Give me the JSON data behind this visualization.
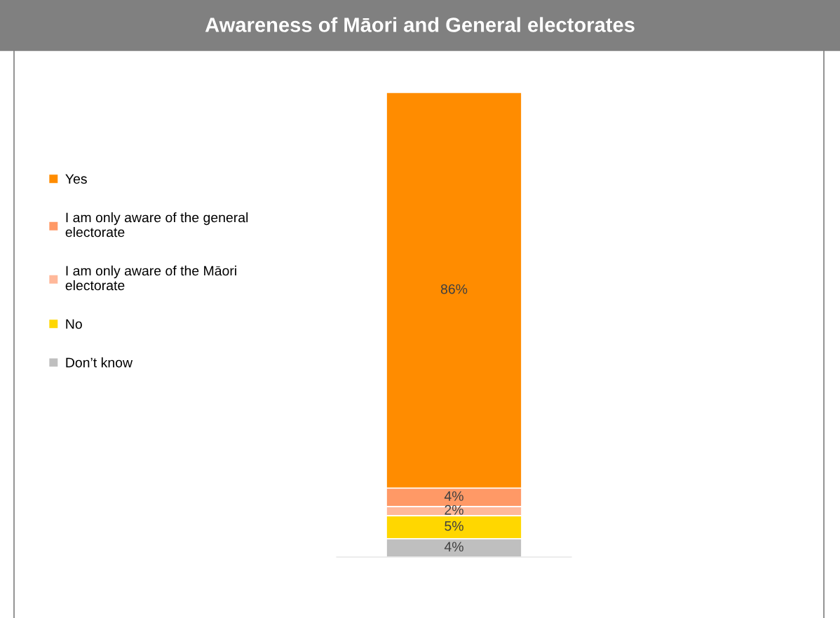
{
  "chart_data": {
    "type": "bar",
    "stacked": true,
    "title": "Awareness of Māori and General electorates",
    "categories": [
      null
    ],
    "series": [
      {
        "name": "Don’t know",
        "color": "#bfbfbf",
        "values": [
          4
        ],
        "value_labels": [
          "4%"
        ]
      },
      {
        "name": "No",
        "color": "#ffd700",
        "values": [
          5
        ],
        "value_labels": [
          "5%"
        ]
      },
      {
        "name": "I am only aware of the Māori electorate",
        "color": "#ffb89a",
        "values": [
          2
        ],
        "value_labels": [
          "2%"
        ]
      },
      {
        "name": "I am only aware of the general electorate",
        "color": "#ff9966",
        "values": [
          4
        ],
        "value_labels": [
          "4%"
        ]
      },
      {
        "name": "Yes",
        "color": "#ff8c00",
        "values": [
          86
        ],
        "value_labels": [
          "86%"
        ]
      }
    ],
    "legend": "left",
    "grid": false
  }
}
